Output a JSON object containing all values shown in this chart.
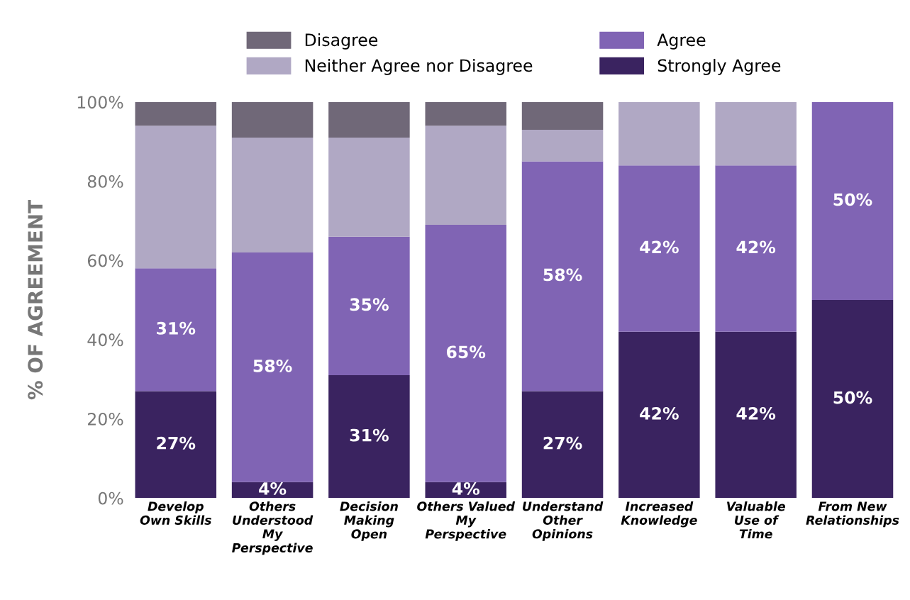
{
  "chart_data": {
    "type": "bar",
    "stacked": true,
    "ylabel": "% OF AGREEMENT",
    "legend": "top",
    "categories": [
      "Develop\nOwn Skills",
      "Others\nUnderstood\nMy\nPerspective",
      "Decision\nMaking\nOpen",
      "Others Valued\nMy\nPerspective",
      "Understand\nOther\nOpinions",
      "Increased\nKnowledge",
      "Valuable\nUse of\nTime",
      "From New\nRelationships"
    ],
    "ylim": [
      0,
      100
    ],
    "yticks": [
      {
        "value": 0,
        "label": "0%"
      },
      {
        "value": 20,
        "label": "20%"
      },
      {
        "value": 40,
        "label": "40%"
      },
      {
        "value": 60,
        "label": "60%"
      },
      {
        "value": 80,
        "label": "80%"
      },
      {
        "value": 100,
        "label": "100%"
      }
    ],
    "series": [
      {
        "name": "Strongly Agree",
        "color": "#3a2360",
        "values": [
          27,
          4,
          31,
          4,
          27,
          42,
          42,
          50
        ],
        "value_labels": [
          "27%",
          "4%",
          "31%",
          "4%",
          "27%",
          "42%",
          "42%",
          "50%"
        ]
      },
      {
        "name": "Agree",
        "color": "#8064b4",
        "values": [
          31,
          58,
          35,
          65,
          58,
          42,
          42,
          50
        ],
        "value_labels": [
          "31%",
          "58%",
          "35%",
          "65%",
          "58%",
          "42%",
          "42%",
          "50%"
        ]
      },
      {
        "name": "Neither Agree nor Disagree",
        "color": "#b0a8c4",
        "values": [
          36,
          29,
          25,
          25,
          8,
          16,
          16,
          null
        ]
      },
      {
        "name": "Disagree",
        "color": "#706878",
        "values": [
          6,
          9,
          9,
          6,
          7,
          null,
          null,
          null
        ]
      }
    ]
  }
}
